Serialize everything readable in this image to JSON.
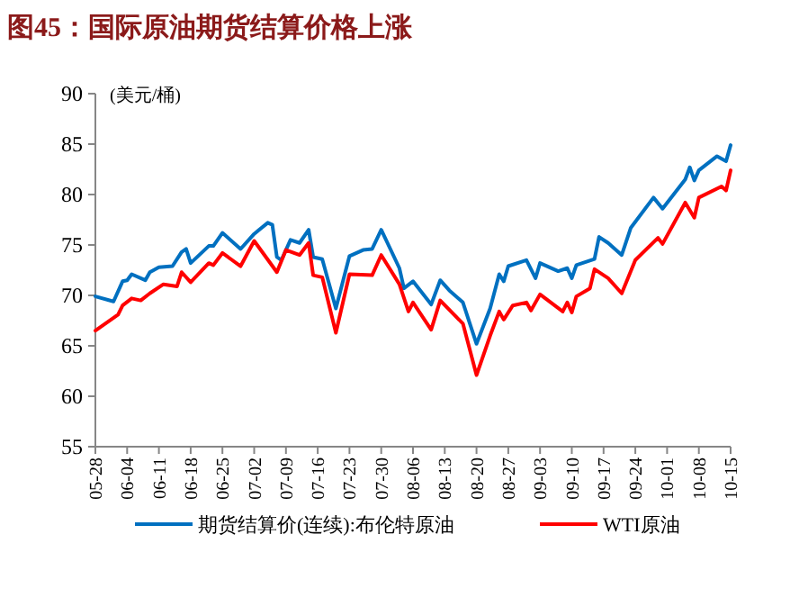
{
  "chart_data": {
    "type": "line",
    "title": "图45：国际原油期货结算价格上涨",
    "ylabel": "(美元/桶)",
    "ylim": [
      55,
      90
    ],
    "yticks": [
      55,
      60,
      65,
      70,
      75,
      80,
      85,
      90
    ],
    "xlim": [
      "--05-28",
      "--10-15"
    ],
    "xticks": [
      {
        "value": "--05-28",
        "label": "05-28"
      },
      {
        "value": "--06-04",
        "label": "06-04"
      },
      {
        "value": "--06-11",
        "label": "06-11"
      },
      {
        "value": "--06-18",
        "label": "06-18"
      },
      {
        "value": "--06-25",
        "label": "06-25"
      },
      {
        "value": "--07-02",
        "label": "07-02"
      },
      {
        "value": "--07-09",
        "label": "07-09"
      },
      {
        "value": "--07-16",
        "label": "07-16"
      },
      {
        "value": "--07-23",
        "label": "07-23"
      },
      {
        "value": "--07-30",
        "label": "07-30"
      },
      {
        "value": "--08-06",
        "label": "08-06"
      },
      {
        "value": "--08-13",
        "label": "08-13"
      },
      {
        "value": "--08-20",
        "label": "08-20"
      },
      {
        "value": "--08-27",
        "label": "08-27"
      },
      {
        "value": "--09-03",
        "label": "09-03"
      },
      {
        "value": "--09-10",
        "label": "09-10"
      },
      {
        "value": "--09-17",
        "label": "09-17"
      },
      {
        "value": "--09-24",
        "label": "09-24"
      },
      {
        "value": "--10-01",
        "label": "10-01"
      },
      {
        "value": "--10-08",
        "label": "10-08"
      },
      {
        "value": "--10-15",
        "label": "10-15"
      }
    ],
    "grid": false,
    "legend": "bottom",
    "marker": "none",
    "line_style": "solid",
    "series": [
      {
        "name": "期货结算价(连续):布伦特原油",
        "color": "#0070c0",
        "x": [
          "--05-28",
          "--06-01",
          "--06-03",
          "--06-04",
          "--06-05",
          "--06-08",
          "--06-09",
          "--06-11",
          "--06-14",
          "--06-16",
          "--06-17",
          "--06-18",
          "--06-22",
          "--06-23",
          "--06-25",
          "--06-29",
          "--07-02",
          "--07-05",
          "--07-06",
          "--07-07",
          "--07-08",
          "--07-10",
          "--07-12",
          "--07-14",
          "--07-15",
          "--07-17",
          "--07-20",
          "--07-23",
          "--07-26",
          "--07-28",
          "--07-30",
          "--08-03",
          "--08-04",
          "--08-06",
          "--08-10",
          "--08-12",
          "--08-14",
          "--08-17",
          "--08-20",
          "--08-23",
          "--08-25",
          "--08-26",
          "--08-27",
          "--08-31",
          "--09-02",
          "--09-03",
          "--09-07",
          "--09-09",
          "--09-10",
          "--09-11",
          "--09-15",
          "--09-16",
          "--09-18",
          "--09-21",
          "--09-23",
          "--09-28",
          "--09-30",
          "--10-05",
          "--10-06",
          "--10-07",
          "--10-08",
          "--10-12",
          "--10-14",
          "--10-15"
        ],
        "values": [
          69.9,
          69.4,
          71.4,
          71.5,
          72.1,
          71.5,
          72.3,
          72.8,
          72.9,
          74.3,
          74.6,
          73.2,
          74.9,
          74.9,
          76.2,
          74.6,
          76.1,
          77.2,
          77.0,
          73.8,
          73.5,
          75.5,
          75.2,
          76.5,
          73.8,
          73.6,
          68.7,
          73.9,
          74.5,
          74.6,
          76.5,
          72.7,
          70.7,
          71.4,
          69.1,
          71.5,
          70.5,
          69.3,
          65.2,
          68.7,
          72.1,
          71.4,
          72.9,
          73.5,
          71.7,
          73.2,
          72.4,
          72.7,
          71.7,
          73.0,
          73.6,
          75.8,
          75.2,
          74.0,
          76.7,
          79.7,
          78.6,
          81.5,
          82.7,
          81.4,
          82.4,
          83.8,
          83.3,
          84.9
        ]
      },
      {
        "name": "WTI原油",
        "color": "#ff0000",
        "x": [
          "--05-28",
          "--06-02",
          "--06-03",
          "--06-05",
          "--06-07",
          "--06-09",
          "--06-12",
          "--06-15",
          "--06-16",
          "--06-18",
          "--06-22",
          "--06-23",
          "--06-25",
          "--06-29",
          "--07-02",
          "--07-07",
          "--07-09",
          "--07-12",
          "--07-14",
          "--07-15",
          "--07-17",
          "--07-20",
          "--07-23",
          "--07-28",
          "--07-30",
          "--08-03",
          "--08-05",
          "--08-06",
          "--08-10",
          "--08-12",
          "--08-17",
          "--08-20",
          "--08-23",
          "--08-25",
          "--08-26",
          "--08-28",
          "--08-31",
          "--09-01",
          "--09-03",
          "--09-08",
          "--09-09",
          "--09-10",
          "--09-11",
          "--09-14",
          "--09-15",
          "--09-18",
          "--09-21",
          "--09-24",
          "--09-29",
          "--09-30",
          "--10-05",
          "--10-07",
          "--10-08",
          "--10-13",
          "--10-14",
          "--10-15"
        ],
        "values": [
          66.5,
          68.1,
          69.0,
          69.7,
          69.5,
          70.2,
          71.1,
          70.9,
          72.3,
          71.3,
          73.2,
          73.0,
          74.2,
          72.9,
          75.4,
          72.3,
          74.5,
          74.0,
          75.2,
          72.0,
          71.8,
          66.3,
          72.1,
          72.0,
          74.0,
          71.1,
          68.4,
          69.3,
          66.6,
          69.5,
          67.2,
          62.1,
          66.0,
          68.4,
          67.6,
          69.0,
          69.3,
          68.5,
          70.1,
          68.4,
          69.3,
          68.3,
          69.9,
          70.7,
          72.6,
          71.7,
          70.2,
          73.5,
          75.7,
          75.1,
          79.2,
          77.7,
          79.7,
          80.8,
          80.4,
          82.4
        ]
      }
    ]
  }
}
